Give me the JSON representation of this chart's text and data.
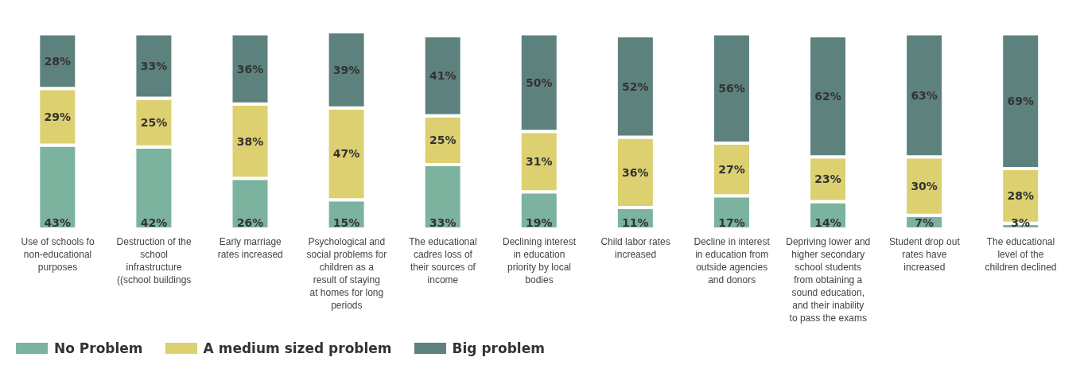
{
  "chart_data": {
    "type": "bar",
    "stacked": true,
    "categories": [
      "Use of schools fo non-educational purposes",
      "Destruction of the school infrastructure ((school buildings",
      "Early marriage rates increased",
      "Psychological and social problems for children as a result of staying at homes for long periods",
      "The educational cadres loss of their sources of income",
      "Declining interest in education priority by local bodies",
      "Child labor rates increased",
      "Decline in interest in education from outside agencies and donors",
      "Depriving lower and higher secondary school students from obtaining a sound education, and their inability to pass the exams",
      "Student drop out rates have increased",
      "The educational level of the children declined"
    ],
    "series": [
      {
        "name": "No Problem",
        "color": "#7bb39f",
        "values": [
          43,
          42,
          26,
          15,
          33,
          19,
          11,
          17,
          14,
          7,
          3
        ],
        "value_labels": [
          "43%",
          "42%",
          "26%",
          "15%",
          "33%",
          "19%",
          "11%",
          "17%",
          "14%",
          "7%",
          "3%"
        ]
      },
      {
        "name": "A medium sized problem",
        "color": "#dcd070",
        "values": [
          29,
          25,
          38,
          47,
          25,
          31,
          36,
          27,
          23,
          30,
          28
        ],
        "value_labels": [
          "29%",
          "25%",
          "38%",
          "47%",
          "25%",
          "31%",
          "36%",
          "27%",
          "23%",
          "30%",
          "28%"
        ]
      },
      {
        "name": "Big problem",
        "color": "#5d827d",
        "values": [
          28,
          33,
          36,
          39,
          41,
          50,
          52,
          56,
          62,
          63,
          69
        ],
        "value_labels": [
          "28%",
          "33%",
          "36%",
          "39%",
          "41%",
          "50%",
          "52%",
          "56%",
          "62%",
          "63%",
          "69%"
        ]
      }
    ],
    "legend": "bottom left",
    "tick_labels": "x"
  }
}
